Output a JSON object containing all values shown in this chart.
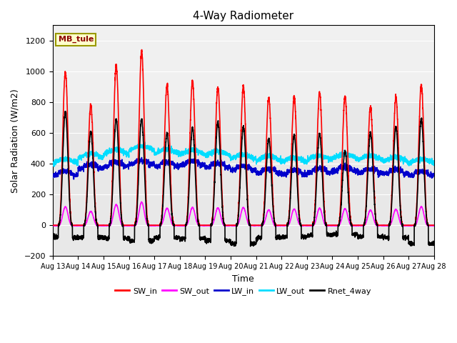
{
  "title": "4-Way Radiometer",
  "xlabel": "Time",
  "ylabel": "Solar Radiation (W/m2)",
  "annotation": "MB_tule",
  "ylim": [
    -200,
    1300
  ],
  "yticks": [
    -200,
    0,
    200,
    400,
    600,
    800,
    1000,
    1200
  ],
  "start_day": 13,
  "end_day": 28,
  "n_days": 15,
  "n_points_per_day": 288,
  "colors": {
    "SW_in": "#ff0000",
    "SW_out": "#ff00ff",
    "LW_in": "#0000cc",
    "LW_out": "#00ddff",
    "Rnet_4way": "#000000"
  },
  "linewidths": {
    "SW_in": 1.2,
    "SW_out": 1.2,
    "LW_in": 1.2,
    "LW_out": 1.2,
    "Rnet_4way": 1.2
  },
  "legend_labels": [
    "SW_in",
    "SW_out",
    "LW_in",
    "LW_out",
    "Rnet_4way"
  ],
  "plot_bg_color": "#e8e8e8",
  "fig_color": "#ffffff",
  "grid_color": "#ffffff",
  "SW_in_peaks": [
    1000,
    780,
    1040,
    1130,
    910,
    940,
    895,
    900,
    830,
    830,
    860,
    840,
    770,
    830,
    910
  ],
  "SW_out_peaks": [
    120,
    90,
    135,
    150,
    110,
    115,
    112,
    115,
    100,
    105,
    110,
    107,
    98,
    103,
    120
  ],
  "LW_in_base": [
    325,
    370,
    385,
    395,
    385,
    392,
    378,
    358,
    340,
    332,
    342,
    352,
    342,
    335,
    325
  ],
  "LW_out_base": [
    400,
    435,
    460,
    485,
    462,
    458,
    452,
    428,
    418,
    408,
    422,
    432,
    422,
    412,
    400
  ],
  "Rnet_peaks": [
    740,
    610,
    690,
    690,
    600,
    635,
    670,
    640,
    560,
    590,
    595,
    480,
    600,
    640,
    690
  ],
  "Rnet_night_vals": [
    -80,
    -80,
    -85,
    -100,
    -80,
    -85,
    -100,
    -120,
    -80,
    -75,
    -65,
    -60,
    -75,
    -80,
    -120
  ]
}
